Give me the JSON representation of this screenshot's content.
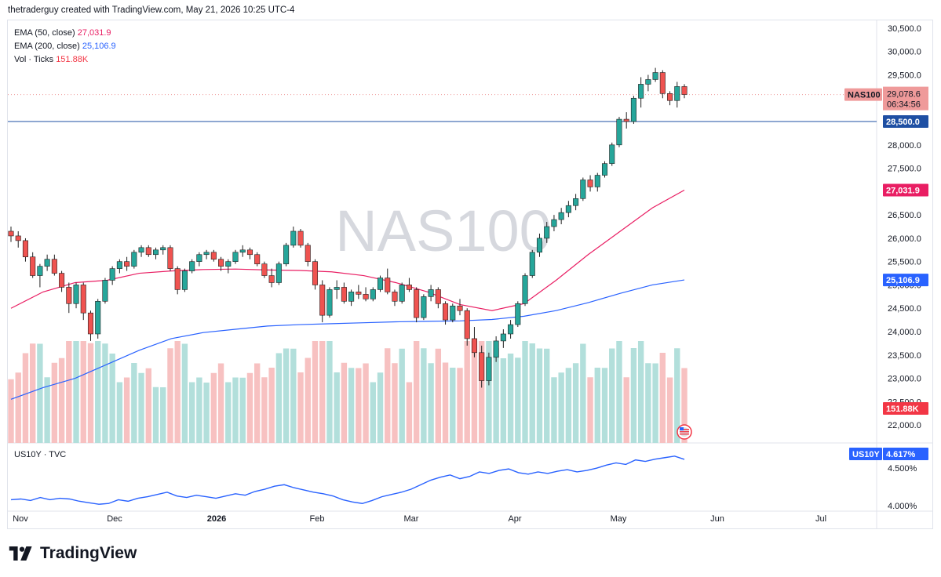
{
  "header": {
    "credit": "thetraderguy created with TradingView.com, May 21, 2026 10:25 UTC-4"
  },
  "legend": {
    "ema50_label": "EMA (50, close)",
    "ema50_value": "27,031.9",
    "ema200_label": "EMA (200, close)",
    "ema200_value": "25,106.9",
    "vol_label": "Vol · Ticks",
    "vol_value": "151.88K"
  },
  "watermark": "NAS100",
  "price_tags": {
    "symbol": "NAS100",
    "last": "29,078.6",
    "countdown": "06:34:56",
    "level": "28,500.0",
    "ema50": "27,031.9",
    "ema200": "25,106.9",
    "volume": "151.88K"
  },
  "sub_pane": {
    "label": "US10Y · TVC",
    "symbol": "US10Y",
    "value": "4.617%"
  },
  "brand": {
    "name": "TradingView"
  },
  "colors": {
    "up": "#26a69a",
    "down": "#ef5350",
    "ema50": "#e91e63",
    "ema200": "#2962ff",
    "level": "#1e4fa3",
    "vol_up": "#b2dfdb",
    "vol_down": "#f7c1c1"
  },
  "chart_data": [
    {
      "type": "candlestick",
      "symbol": "NAS100",
      "x_axis": {
        "labels": [
          "Nov",
          "Dec",
          "2026",
          "Feb",
          "Mar",
          "Apr",
          "May",
          "Jun",
          "Jul"
        ]
      },
      "y_axis": {
        "min": 21800,
        "max": 30600,
        "ticks": [
          22000,
          22500,
          23000,
          23500,
          24000,
          24500,
          25000,
          25500,
          26000,
          26500,
          27000,
          27500,
          28000,
          28500,
          29000,
          29500,
          30000,
          30500
        ]
      },
      "horizontal_line": 28500,
      "last_price": 29078.6,
      "series": [
        {
          "name": "EMA (50, close)",
          "last": 27031.9,
          "values": [
            24500,
            24850,
            25050,
            25100,
            25250,
            25300,
            25330,
            25340,
            25320,
            25310,
            25280,
            25200,
            25050,
            24850,
            24580,
            24450,
            24600,
            25100,
            25650,
            26150,
            26650,
            27031.9
          ]
        },
        {
          "name": "EMA (200, close)",
          "last": 25106.9,
          "values": [
            22550,
            22800,
            23000,
            23300,
            23600,
            23850,
            23980,
            24050,
            24120,
            24150,
            24170,
            24190,
            24210,
            24220,
            24230,
            24260,
            24330,
            24450,
            24620,
            24820,
            25000,
            25106.9
          ]
        }
      ],
      "candles": [
        [
          26150,
          26250,
          25920,
          26050
        ],
        [
          26050,
          26150,
          25800,
          25950
        ],
        [
          25950,
          26000,
          25500,
          25600
        ],
        [
          25600,
          25700,
          25150,
          25200
        ],
        [
          25200,
          25450,
          24950,
          25400
        ],
        [
          25400,
          25650,
          25300,
          25550
        ],
        [
          25550,
          25650,
          25200,
          25250
        ],
        [
          25250,
          25300,
          24850,
          24950
        ],
        [
          24950,
          25050,
          24400,
          24600
        ],
        [
          24600,
          25050,
          24500,
          25000
        ],
        [
          25000,
          25050,
          24250,
          24400
        ],
        [
          24400,
          24450,
          23800,
          23950
        ],
        [
          23950,
          24700,
          23850,
          24650
        ],
        [
          24650,
          25150,
          24600,
          25100
        ],
        [
          25100,
          25400,
          25000,
          25350
        ],
        [
          25350,
          25550,
          25250,
          25500
        ],
        [
          25500,
          25600,
          25300,
          25400
        ],
        [
          25400,
          25750,
          25350,
          25700
        ],
        [
          25700,
          25850,
          25600,
          25800
        ],
        [
          25800,
          25850,
          25600,
          25650
        ],
        [
          25650,
          25800,
          25550,
          25750
        ],
        [
          25750,
          25850,
          25650,
          25800
        ],
        [
          25800,
          25850,
          25300,
          25350
        ],
        [
          25350,
          25400,
          24800,
          24900
        ],
        [
          24900,
          25350,
          24850,
          25300
        ],
        [
          25300,
          25550,
          25250,
          25500
        ],
        [
          25500,
          25700,
          25400,
          25650
        ],
        [
          25650,
          25750,
          25550,
          25700
        ],
        [
          25700,
          25750,
          25500,
          25550
        ],
        [
          25550,
          25600,
          25300,
          25400
        ],
        [
          25400,
          25550,
          25250,
          25500
        ],
        [
          25500,
          25750,
          25450,
          25700
        ],
        [
          25700,
          25850,
          25600,
          25750
        ],
        [
          25750,
          25800,
          25550,
          25650
        ],
        [
          25650,
          25700,
          25400,
          25450
        ],
        [
          25450,
          25500,
          25150,
          25200
        ],
        [
          25200,
          25350,
          24950,
          25050
        ],
        [
          25050,
          25500,
          25000,
          25450
        ],
        [
          25450,
          25900,
          25400,
          25850
        ],
        [
          25850,
          26250,
          25800,
          26150
        ],
        [
          26150,
          26200,
          25800,
          25850
        ],
        [
          25850,
          25900,
          25400,
          25500
        ],
        [
          25500,
          25550,
          24900,
          25000
        ],
        [
          25000,
          25100,
          24200,
          24350
        ],
        [
          24350,
          24950,
          24300,
          24900
        ],
        [
          24900,
          25100,
          24700,
          24950
        ],
        [
          24950,
          25050,
          24600,
          24650
        ],
        [
          24650,
          24900,
          24550,
          24850
        ],
        [
          24850,
          25000,
          24700,
          24800
        ],
        [
          24800,
          24950,
          24650,
          24700
        ],
        [
          24700,
          24950,
          24650,
          24900
        ],
        [
          24900,
          25200,
          24850,
          25150
        ],
        [
          25150,
          25350,
          24800,
          24850
        ],
        [
          24850,
          24900,
          24550,
          24650
        ],
        [
          24650,
          25050,
          24600,
          25000
        ],
        [
          25000,
          25150,
          24850,
          24900
        ],
        [
          24900,
          24950,
          24200,
          24300
        ],
        [
          24300,
          24800,
          24250,
          24750
        ],
        [
          24750,
          25000,
          24650,
          24900
        ],
        [
          24900,
          24950,
          24500,
          24600
        ],
        [
          24600,
          24650,
          24150,
          24250
        ],
        [
          24250,
          24600,
          24200,
          24550
        ],
        [
          24550,
          24700,
          24350,
          24450
        ],
        [
          24450,
          24500,
          23700,
          23850
        ],
        [
          23850,
          24100,
          23450,
          23550
        ],
        [
          23550,
          23700,
          22800,
          22950
        ],
        [
          22950,
          23550,
          22850,
          23450
        ],
        [
          23450,
          23900,
          23350,
          23800
        ],
        [
          23800,
          24050,
          23650,
          23950
        ],
        [
          23950,
          24250,
          23850,
          24150
        ],
        [
          24150,
          24650,
          24100,
          24600
        ],
        [
          24600,
          25250,
          24550,
          25200
        ],
        [
          25200,
          25750,
          25150,
          25700
        ],
        [
          25700,
          26100,
          25600,
          26000
        ],
        [
          26000,
          26350,
          25900,
          26250
        ],
        [
          26250,
          26500,
          26150,
          26400
        ],
        [
          26400,
          26650,
          26300,
          26550
        ],
        [
          26550,
          26800,
          26450,
          26700
        ],
        [
          26700,
          26950,
          26600,
          26850
        ],
        [
          26850,
          27300,
          26800,
          27250
        ],
        [
          27250,
          27350,
          27000,
          27100
        ],
        [
          27100,
          27400,
          27000,
          27350
        ],
        [
          27350,
          27650,
          27300,
          27600
        ],
        [
          27600,
          28050,
          27550,
          28000
        ],
        [
          28000,
          28600,
          27950,
          28550
        ],
        [
          28550,
          28700,
          28350,
          28500
        ],
        [
          28500,
          29050,
          28450,
          29000
        ],
        [
          29000,
          29450,
          28800,
          29300
        ],
        [
          29300,
          29500,
          29150,
          29400
        ],
        [
          29400,
          29650,
          29350,
          29550
        ],
        [
          29550,
          29600,
          29000,
          29100
        ],
        [
          29100,
          29150,
          28850,
          28950
        ],
        [
          28950,
          29350,
          28800,
          29250
        ],
        [
          29250,
          29300,
          29000,
          29078.6
        ]
      ]
    },
    {
      "type": "line",
      "symbol": "US10Y",
      "y_axis": {
        "ticks": [
          4.0,
          4.5
        ]
      },
      "last": 4.617,
      "values": [
        4.08,
        4.09,
        4.07,
        4.11,
        4.08,
        4.1,
        4.09,
        4.06,
        4.04,
        4.02,
        4.03,
        4.08,
        4.06,
        4.1,
        4.12,
        4.15,
        4.18,
        4.13,
        4.11,
        4.14,
        4.12,
        4.1,
        4.13,
        4.16,
        4.14,
        4.19,
        4.22,
        4.26,
        4.28,
        4.24,
        4.21,
        4.18,
        4.16,
        4.13,
        4.08,
        4.05,
        4.03,
        4.07,
        4.12,
        4.15,
        4.18,
        4.22,
        4.28,
        4.34,
        4.38,
        4.41,
        4.36,
        4.39,
        4.45,
        4.43,
        4.47,
        4.49,
        4.44,
        4.42,
        4.45,
        4.43,
        4.46,
        4.48,
        4.45,
        4.47,
        4.5,
        4.54,
        4.57,
        4.55,
        4.61,
        4.59,
        4.62,
        4.64,
        4.66,
        4.617
      ]
    }
  ]
}
